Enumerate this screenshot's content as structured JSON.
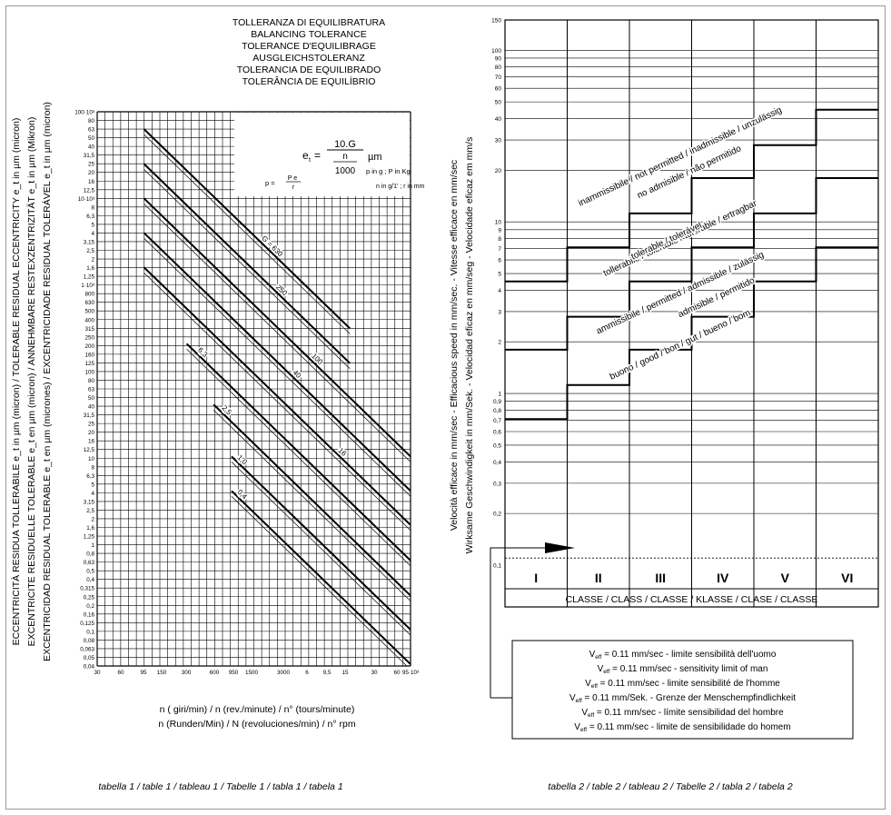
{
  "table1": {
    "title_lines": [
      "TOLLERANZA DI EQUILIBRATURA",
      "BALANCING TOLERANCE",
      "TOLERANCE D'EQUILIBRAGE",
      "AUSGLEICHSTOLERANZ",
      "TOLERANCIA DE EQUILIBRADO",
      "TOLERÂNCIA DE EQUILÍBRIO"
    ],
    "ylabel_lines": [
      "ECCENTRICITÀ RESIDUA TOLLERABILE e_t in µm (micron) / TOLERABLE RESIDUAL ECCENTRICITY e_t in µm (micron)",
      "EXCENTRICITE RESIDUELLE TOLERABLE e_t en µm (micron) / ANNEHMBARE RESTEXZENTRIZITÄT e_t in µm (Mikron)",
      "EXCENTRICIDAD RESIDUAL TOLERABLE e_t en µm (micrones) / EXCENTRICIDADE RESIDUAL TOLERÁVEL e_t in µm (micron)"
    ],
    "xlabel_lines": [
      "n ( giri/min) / n (rev./minute) / n° (tours/minute)",
      "n (Runden/Min) / N (revoluciones/min) / n° rpm"
    ],
    "y_tick_labels": [
      "100·10³",
      "80",
      "63",
      "50",
      "40",
      "31,5",
      "25",
      "20",
      "16",
      "12,5",
      "10·10³",
      "8",
      "6,3",
      "5",
      "4",
      "3,15",
      "2,5",
      "2",
      "1,6",
      "1,25",
      "1·10³",
      "800",
      "630",
      "500",
      "400",
      "315",
      "250",
      "200",
      "160",
      "125",
      "100",
      "80",
      "63",
      "50",
      "40",
      "31,5",
      "25",
      "20",
      "16",
      "12,5",
      "10",
      "8",
      "6,3",
      "5",
      "4",
      "3,15",
      "2,5",
      "2",
      "1,6",
      "1,25",
      "1",
      "0,8",
      "0,63",
      "0,5",
      "0,4",
      "0,315",
      "0,25",
      "0,2",
      "0,16",
      "0,125",
      "0,1",
      "0,08",
      "0,063",
      "0,05",
      "0,04"
    ],
    "x_tick_labels": [
      "30",
      "60",
      "95",
      "150",
      "300",
      "600",
      "950",
      "1500",
      "3000",
      "6",
      "9,5",
      "15",
      "30",
      "60",
      "95·10³"
    ],
    "formula": {
      "lhs": "e",
      "lhs_sub": "t",
      "eq": "=",
      "numerator": "10.G",
      "inner_numerator": "n",
      "denominator": "1000",
      "unit": "µm",
      "note1": "p in g ; P in Kg",
      "note2": "n in g/1' ; r in mm",
      "p_eq_left": "p =",
      "p_frac_top": "P e",
      "p_frac_bottom": "r"
    },
    "caption": "tabella 1 / table 1 / tableau 1 / Tabelle 1 / tabla 1 / tabela 1"
  },
  "chart_data": [
    {
      "type": "line",
      "title": "TOLLERANZA DI EQUILIBRATURA / BALANCING TOLERANCE",
      "x_scale": "log",
      "y_scale": "log",
      "xlim": [
        30,
        95000
      ],
      "ylim": [
        0.04,
        100000
      ],
      "x_unit": "rpm",
      "y_unit": "µm",
      "series": [
        {
          "name": "G = 630",
          "G": 630,
          "x": [
            100,
            20000
          ],
          "y": [
            63000,
            315
          ]
        },
        {
          "name": "250",
          "G": 250,
          "x": [
            100,
            20000
          ],
          "y": [
            25000,
            125
          ]
        },
        {
          "name": "100",
          "G": 100,
          "x": [
            100,
            95000
          ],
          "y": [
            10000,
            10.5
          ]
        },
        {
          "name": "40",
          "G": 40,
          "x": [
            100,
            95000
          ],
          "y": [
            4000,
            4.2
          ]
        },
        {
          "name": "16",
          "G": 16,
          "x": [
            100,
            95000
          ],
          "y": [
            1600,
            1.7
          ]
        },
        {
          "name": "6,3",
          "G": 6.3,
          "x": [
            300,
            95000
          ],
          "y": [
            210,
            0.66
          ]
        },
        {
          "name": "2,5",
          "G": 2.5,
          "x": [
            600,
            95000
          ],
          "y": [
            41.7,
            0.26
          ]
        },
        {
          "name": "1,0",
          "G": 1.0,
          "x": [
            950,
            95000
          ],
          "y": [
            10.5,
            0.105
          ]
        },
        {
          "name": "0,4",
          "G": 0.4,
          "x": [
            950,
            95000
          ],
          "y": [
            4.2,
            0.042
          ]
        }
      ]
    },
    {
      "type": "line",
      "title": "Velocità efficace / Efficacious speed",
      "y_scale": "log",
      "ylim": [
        0.1,
        150
      ],
      "y_unit": "mm/sec",
      "categories": [
        "I",
        "II",
        "III",
        "IV",
        "V",
        "VI"
      ],
      "series": [
        {
          "name": "buono / good / bon / gut / bueno / bom",
          "values": [
            0.71,
            1.12,
            1.8,
            2.8,
            4.5,
            7.1
          ]
        },
        {
          "name": "ammissibile / permitted / admissible / zulässig",
          "values": [
            1.8,
            2.8,
            4.5,
            7.1,
            11.2,
            18
          ]
        },
        {
          "name": "tollerabile / tolerable / tolérable / ertragbar",
          "values": [
            4.5,
            7.1,
            11.2,
            18,
            28,
            45
          ]
        }
      ],
      "reference_line": {
        "label": "V_eff = 0.11 mm/sec",
        "value": 0.11
      }
    }
  ],
  "table2": {
    "y_tick_labels": [
      "150",
      "100",
      "90",
      "80",
      "70",
      "60",
      "50",
      "40",
      "30",
      "20",
      "10",
      "9",
      "8",
      "7",
      "6",
      "5",
      "4",
      "3",
      "2",
      "1",
      "0,9",
      "0,8",
      "0,7",
      "0,6",
      "0,5",
      "0,4",
      "0,3",
      "0,2",
      "0,1"
    ],
    "ylabel_lines": [
      "Velocità efficace in mm/sec - Efficacious speed in mm/sec. - Vitesse efficace en mm/sec",
      "Wirksame Geschwindigkeit in mm/Sek. - Velocidad eficaz en mm/seg - Velocidade eficaz em mm/s"
    ],
    "zone_labels": {
      "inadmissible_1": "inammissibile / not permitted / inadmissible / unzulässig",
      "inadmissible_2": "no admisible / não permitido",
      "tolerable_1": "tollerabile / tolerable / tolérable / ertragbar",
      "tolerable_2": "tolerable / tolerável",
      "permitted_1": "ammissibile / permitted / admissible / zulässig",
      "permitted_2": "admisible / permitido",
      "good": "buono / good / bon / gut / bueno / bom"
    },
    "classes": [
      "I",
      "II",
      "III",
      "IV",
      "V",
      "VI"
    ],
    "class_row_label": "CLASSE / CLASS / CLASSE / KLASSE / CLASE / CLASSE",
    "legend_lines": [
      {
        "v": "V",
        "sub": "eff",
        "text": " = 0.11 mm/sec - limite sensibilità dell'uomo"
      },
      {
        "v": "V",
        "sub": "eff",
        "text": " = 0.11 mm/sec - sensitivity limit of man"
      },
      {
        "v": "V",
        "sub": "eff",
        "text": " = 0.11 mm/sec - limite sensibilité de l'homme"
      },
      {
        "v": "V",
        "sub": "eff",
        "text": " = 0.11 mm/Sek. - Grenze der Menschempfindlichkeit"
      },
      {
        "v": "V",
        "sub": "eff",
        "text": " = 0.11 mm/sec - límite sensibilidad del hombre"
      },
      {
        "v": "V",
        "sub": "eff",
        "text": " = 0.11 mm/sec - limite de sensibilidade do homem"
      }
    ],
    "caption": "tabella 2 / table 2 / tableau 2 / Tabelle 2 / tabla 2 / tabela 2"
  }
}
